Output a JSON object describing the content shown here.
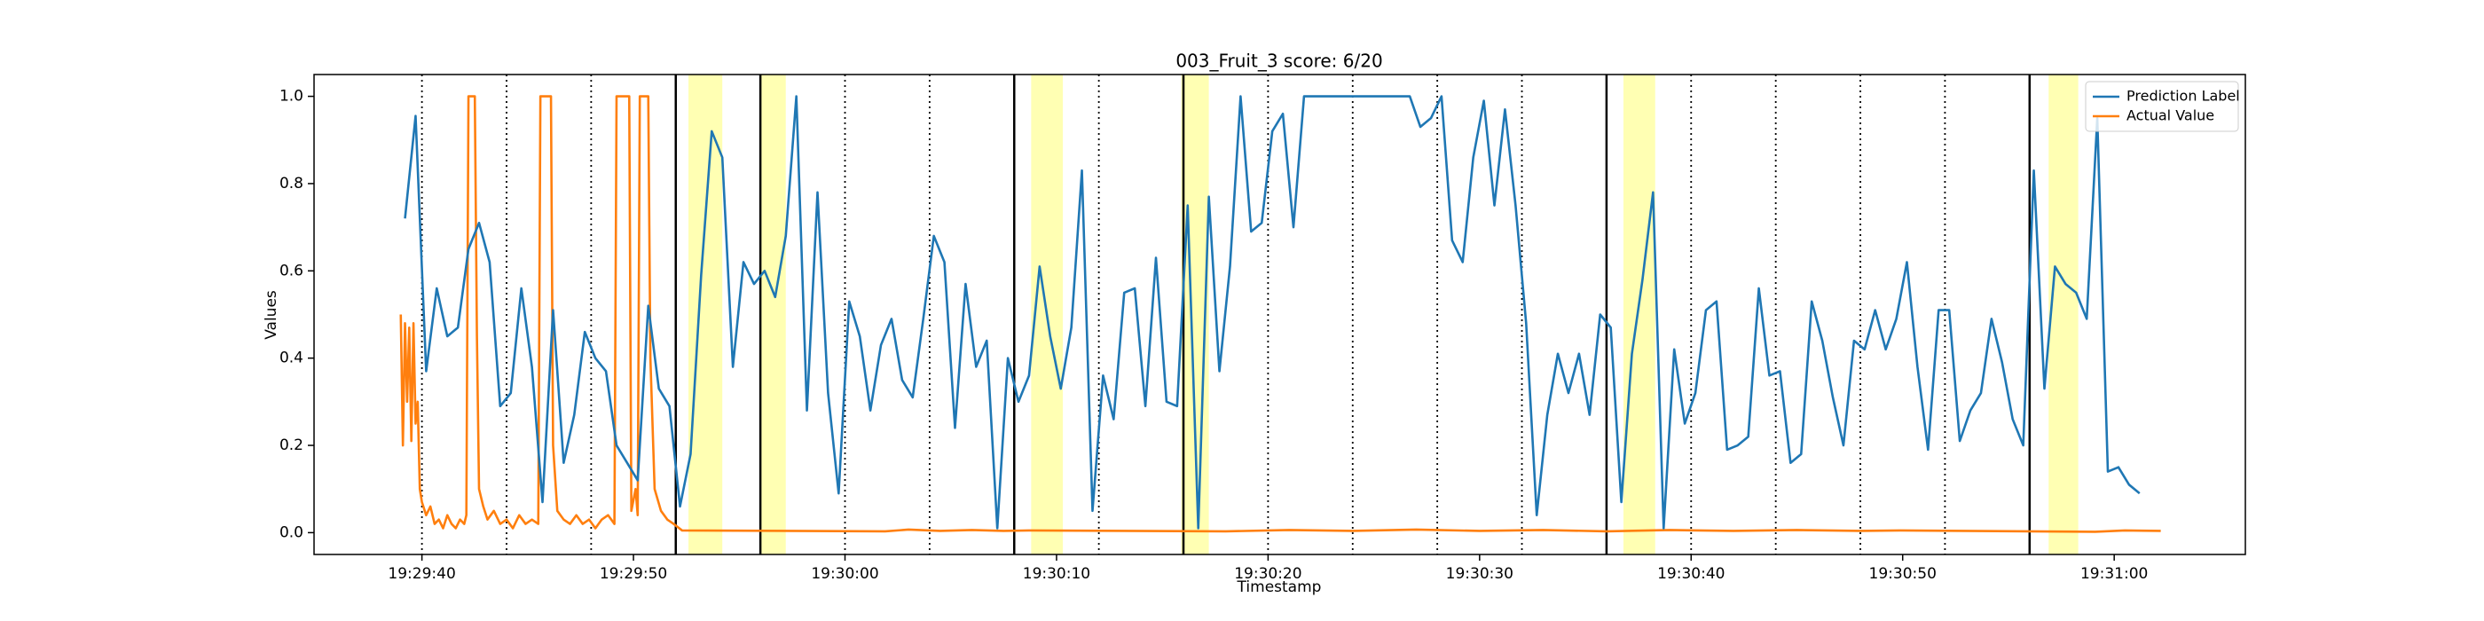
{
  "chart_data": {
    "type": "line",
    "title": "003_Fruit_3 score: 6/20",
    "x_label": "Timestamp",
    "y_label": "Values",
    "xlim": [
      "19:29:34.9",
      "19:31:06.2"
    ],
    "xticks": [
      "19:29:40",
      "19:29:50",
      "19:30:00",
      "19:30:10",
      "19:30:20",
      "19:30:30",
      "19:30:40",
      "19:30:50",
      "19:31:00"
    ],
    "ylim": [
      -0.05,
      1.05
    ],
    "yticks": [
      {
        "value": 0,
        "label": "0.0"
      },
      0.2,
      0.4,
      0.6,
      0.8,
      {
        "value": 1,
        "label": "1.0"
      }
    ],
    "legend": "upper right",
    "vlines": [
      {
        "x": "19:29:40",
        "style": "dotted"
      },
      {
        "x": "19:29:44",
        "style": "dotted"
      },
      {
        "x": "19:29:48",
        "style": "dotted"
      },
      {
        "x": "19:29:52",
        "style": "solid"
      },
      {
        "x": "19:29:56",
        "style": "solid"
      },
      {
        "x": "19:30:00",
        "style": "dotted"
      },
      {
        "x": "19:30:04",
        "style": "dotted"
      },
      {
        "x": "19:30:08",
        "style": "solid"
      },
      {
        "x": "19:30:12",
        "style": "dotted"
      },
      {
        "x": "19:30:16",
        "style": "solid"
      },
      {
        "x": "19:30:20",
        "style": "dotted"
      },
      {
        "x": "19:30:24",
        "style": "dotted"
      },
      {
        "x": "19:30:28",
        "style": "dotted"
      },
      {
        "x": "19:30:32",
        "style": "dotted"
      },
      {
        "x": "19:30:36",
        "style": "solid"
      },
      {
        "x": "19:30:40",
        "style": "dotted"
      },
      {
        "x": "19:30:44",
        "style": "dotted"
      },
      {
        "x": "19:30:48",
        "style": "dotted"
      },
      {
        "x": "19:30:52",
        "style": "dotted"
      },
      {
        "x": "19:30:56",
        "style": "solid"
      }
    ],
    "spans": [
      [
        "19:29:52.6",
        "19:29:54.2"
      ],
      [
        "19:29:56.0",
        "19:29:57.2"
      ],
      [
        "19:30:08.8",
        "19:30:10.3"
      ],
      [
        "19:30:15.9",
        "19:30:17.2"
      ],
      [
        "19:30:36.8",
        "19:30:38.3"
      ],
      [
        "19:30:56.9",
        "19:30:58.3"
      ]
    ],
    "span_color": "#ffff99",
    "series": [
      {
        "name": "Prediction Label",
        "color": "#1f77b4",
        "x": [
          "19:29:39.2",
          "19:29:39.7",
          "19:29:40.2",
          "19:29:40.7",
          "19:29:41.2",
          "19:29:41.7",
          "19:29:42.2",
          "19:29:42.7",
          "19:29:43.2",
          "19:29:43.7",
          "19:29:44.2",
          "19:29:44.7",
          "19:29:45.2",
          "19:29:45.7",
          "19:29:46.2",
          "19:29:46.7",
          "19:29:47.2",
          "19:29:47.7",
          "19:29:48.2",
          "19:29:48.7",
          "19:29:49.2",
          "19:29:49.7",
          "19:29:50.2",
          "19:29:50.7",
          "19:29:51.2",
          "19:29:51.7",
          "19:29:52.2",
          "19:29:52.7",
          "19:29:53.2",
          "19:29:53.7",
          "19:29:54.2",
          "19:29:54.7",
          "19:29:55.2",
          "19:29:55.7",
          "19:29:56.2",
          "19:29:56.7",
          "19:29:57.2",
          "19:29:57.7",
          "19:29:58.2",
          "19:29:58.7",
          "19:29:59.2",
          "19:29:59.7",
          "19:30:00.2",
          "19:30:00.7",
          "19:30:01.2",
          "19:30:01.7",
          "19:30:02.2",
          "19:30:02.7",
          "19:30:03.2",
          "19:30:03.7",
          "19:30:04.2",
          "19:30:04.7",
          "19:30:05.2",
          "19:30:05.7",
          "19:30:06.2",
          "19:30:06.7",
          "19:30:07.2",
          "19:30:07.7",
          "19:30:08.2",
          "19:30:08.7",
          "19:30:09.2",
          "19:30:09.7",
          "19:30:10.2",
          "19:30:10.7",
          "19:30:11.2",
          "19:30:11.7",
          "19:30:12.2",
          "19:30:12.7",
          "19:30:13.2",
          "19:30:13.7",
          "19:30:14.2",
          "19:30:14.7",
          "19:30:15.2",
          "19:30:15.7",
          "19:30:16.2",
          "19:30:16.7",
          "19:30:17.2",
          "19:30:17.7",
          "19:30:18.2",
          "19:30:18.7",
          "19:30:19.2",
          "19:30:19.7",
          "19:30:20.2",
          "19:30:20.7",
          "19:30:21.2",
          "19:30:21.7",
          "19:30:22.2",
          "19:30:22.7",
          "19:30:23.2",
          "19:30:23.7",
          "19:30:24.2",
          "19:30:24.7",
          "19:30:25.2",
          "19:30:25.7",
          "19:30:26.2",
          "19:30:26.7",
          "19:30:27.2",
          "19:30:27.7",
          "19:30:28.2",
          "19:30:28.7",
          "19:30:29.2",
          "19:30:29.7",
          "19:30:30.2",
          "19:30:30.7",
          "19:30:31.2",
          "19:30:31.7",
          "19:30:32.2",
          "19:30:32.7",
          "19:30:33.2",
          "19:30:33.7",
          "19:30:34.2",
          "19:30:34.7",
          "19:30:35.2",
          "19:30:35.7",
          "19:30:36.2",
          "19:30:36.7",
          "19:30:37.2",
          "19:30:37.7",
          "19:30:38.2",
          "19:30:38.7",
          "19:30:39.2",
          "19:30:39.7",
          "19:30:40.2",
          "19:30:40.7",
          "19:30:41.2",
          "19:30:41.7",
          "19:30:42.2",
          "19:30:42.7",
          "19:30:43.2",
          "19:30:43.7",
          "19:30:44.2",
          "19:30:44.7",
          "19:30:45.2",
          "19:30:45.7",
          "19:30:46.2",
          "19:30:46.7",
          "19:30:47.2",
          "19:30:47.7",
          "19:30:48.2",
          "19:30:48.7",
          "19:30:49.2",
          "19:30:49.7",
          "19:30:50.2",
          "19:30:50.7",
          "19:30:51.2",
          "19:30:51.7",
          "19:30:52.2",
          "19:30:52.7",
          "19:30:53.2",
          "19:30:53.7",
          "19:30:54.2",
          "19:30:54.7",
          "19:30:55.2",
          "19:30:55.7",
          "19:30:56.2",
          "19:30:56.7",
          "19:30:57.2",
          "19:30:57.7",
          "19:30:58.2",
          "19:30:58.7",
          "19:30:59.2",
          "19:30:59.7",
          "19:31:00.2",
          "19:31:00.7",
          "19:31:01.2"
        ],
        "values": [
          0.72,
          0.955,
          0.37,
          0.56,
          0.45,
          0.47,
          0.65,
          0.71,
          0.62,
          0.29,
          0.32,
          0.56,
          0.38,
          0.07,
          0.51,
          0.16,
          0.27,
          0.46,
          0.4,
          0.37,
          0.2,
          0.16,
          0.12,
          0.52,
          0.33,
          0.29,
          0.06,
          0.18,
          0.59,
          0.92,
          0.86,
          0.38,
          0.62,
          0.57,
          0.6,
          0.54,
          0.68,
          1.0,
          0.28,
          0.78,
          0.32,
          0.09,
          0.53,
          0.45,
          0.28,
          0.43,
          0.49,
          0.35,
          0.31,
          0.49,
          0.68,
          0.62,
          0.24,
          0.57,
          0.38,
          0.44,
          0.01,
          0.4,
          0.3,
          0.36,
          0.61,
          0.45,
          0.33,
          0.47,
          0.83,
          0.05,
          0.36,
          0.26,
          0.55,
          0.56,
          0.29,
          0.63,
          0.3,
          0.29,
          0.75,
          0.01,
          0.77,
          0.37,
          0.61,
          1.0,
          0.69,
          0.71,
          0.92,
          0.96,
          0.7,
          1.0,
          1.0,
          1.0,
          1.0,
          1.0,
          1.0,
          1.0,
          1.0,
          1.0,
          1.0,
          1.0,
          0.93,
          0.95,
          1.0,
          0.67,
          0.62,
          0.86,
          0.99,
          0.75,
          0.97,
          0.75,
          0.48,
          0.04,
          0.27,
          0.41,
          0.32,
          0.41,
          0.27,
          0.5,
          0.47,
          0.07,
          0.41,
          0.58,
          0.78,
          0.01,
          0.42,
          0.25,
          0.32,
          0.51,
          0.53,
          0.19,
          0.2,
          0.22,
          0.56,
          0.36,
          0.37,
          0.16,
          0.18,
          0.53,
          0.44,
          0.31,
          0.2,
          0.44,
          0.42,
          0.51,
          0.42,
          0.49,
          0.62,
          0.38,
          0.19,
          0.51,
          0.51,
          0.21,
          0.28,
          0.32,
          0.49,
          0.39,
          0.26,
          0.2,
          0.83,
          0.33,
          0.61,
          0.57,
          0.55,
          0.49,
          0.95,
          0.14,
          0.15,
          0.11,
          0.09
        ]
      },
      {
        "name": "Actual Value",
        "color": "#ff7f0e",
        "x": [
          "19:29:39.0",
          "19:29:39.1",
          "19:29:39.2",
          "19:29:39.3",
          "19:29:39.4",
          "19:29:39.5",
          "19:29:39.6",
          "19:29:39.7",
          "19:29:39.8",
          "19:29:39.9",
          "19:29:40.0",
          "19:29:40.2",
          "19:29:40.4",
          "19:29:40.6",
          "19:29:40.8",
          "19:29:41.0",
          "19:29:41.2",
          "19:29:41.4",
          "19:29:41.6",
          "19:29:41.8",
          "19:29:42.0",
          "19:29:42.1",
          "19:29:42.2",
          "19:29:42.5",
          "19:29:42.6",
          "19:29:42.7",
          "19:29:42.9",
          "19:29:43.1",
          "19:29:43.4",
          "19:29:43.7",
          "19:29:44.0",
          "19:29:44.3",
          "19:29:44.6",
          "19:29:44.9",
          "19:29:45.2",
          "19:29:45.5",
          "19:29:45.6",
          "19:29:46.1",
          "19:29:46.2",
          "19:29:46.4",
          "19:29:46.7",
          "19:29:47.0",
          "19:29:47.3",
          "19:29:47.6",
          "19:29:47.9",
          "19:29:48.2",
          "19:29:48.5",
          "19:29:48.8",
          "19:29:49.1",
          "19:29:49.2",
          "19:29:49.8",
          "19:29:49.9",
          "19:29:50.1",
          "19:29:50.2",
          "19:29:50.3",
          "19:29:50.7",
          "19:29:50.8",
          "19:29:51.0",
          "19:29:51.3",
          "19:29:51.6",
          "19:29:51.9",
          "19:29:52.3",
          "19:30:01.9",
          "19:30:03.0",
          "19:30:04.5",
          "19:30:06.0",
          "19:30:07.5",
          "19:30:08.7",
          "19:30:18.0",
          "19:30:21.0",
          "19:30:24.0",
          "19:30:27.0",
          "19:30:30.0",
          "19:30:33.0",
          "19:30:36.0",
          "19:30:39.0",
          "19:30:42.0",
          "19:30:45.0",
          "19:30:48.0",
          "19:30:49.9",
          "19:30:59.1",
          "19:31:00.5",
          "19:31:02.2"
        ],
        "values": [
          0.5,
          0.2,
          0.48,
          0.3,
          0.47,
          0.21,
          0.48,
          0.25,
          0.3,
          0.1,
          0.07,
          0.04,
          0.06,
          0.02,
          0.03,
          0.01,
          0.04,
          0.02,
          0.01,
          0.03,
          0.02,
          0.04,
          1.0,
          1.0,
          0.45,
          0.1,
          0.06,
          0.03,
          0.05,
          0.02,
          0.03,
          0.01,
          0.04,
          0.02,
          0.03,
          0.02,
          1.0,
          1.0,
          0.2,
          0.05,
          0.03,
          0.02,
          0.04,
          0.02,
          0.03,
          0.01,
          0.03,
          0.04,
          0.02,
          1.0,
          1.0,
          0.05,
          0.1,
          0.04,
          1.0,
          1.0,
          0.4,
          0.1,
          0.05,
          0.03,
          0.02,
          0.005,
          0.003,
          0.007,
          0.004,
          0.006,
          0.004,
          0.005,
          0.003,
          0.006,
          0.004,
          0.007,
          0.004,
          0.006,
          0.003,
          0.006,
          0.004,
          0.006,
          0.004,
          0.005,
          0.002,
          0.005,
          0.004
        ]
      }
    ]
  }
}
